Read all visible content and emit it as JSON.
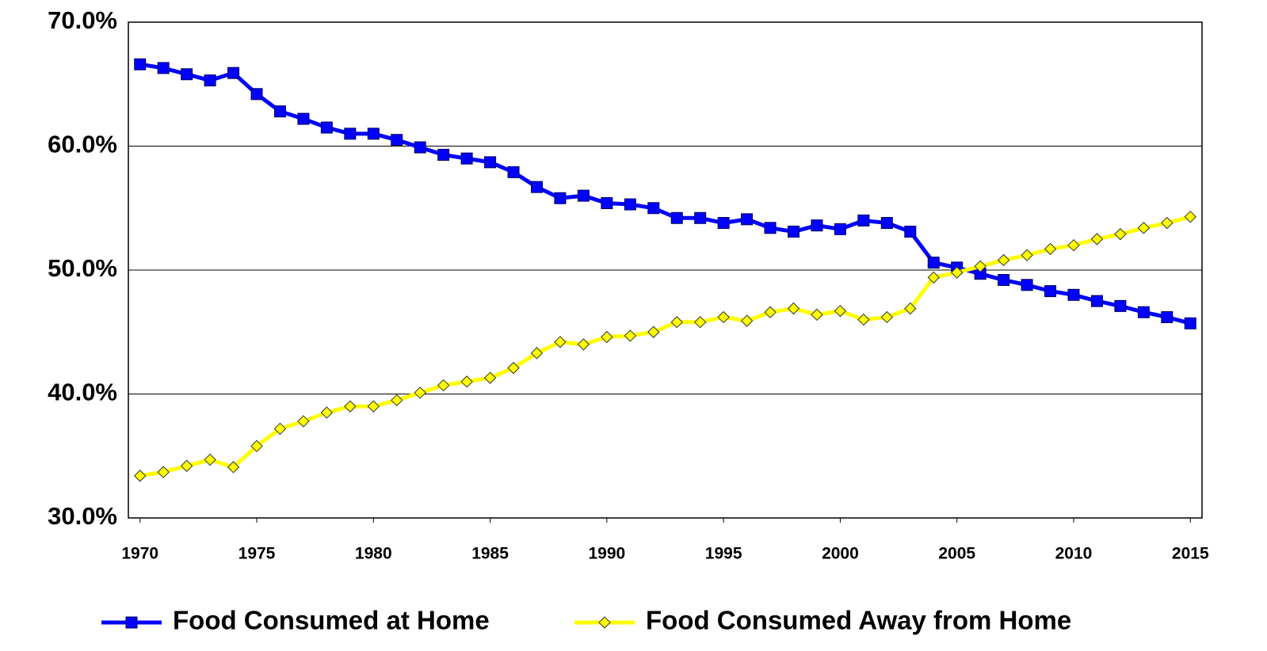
{
  "chart_data": {
    "type": "line",
    "x": [
      1970,
      1971,
      1972,
      1973,
      1974,
      1975,
      1976,
      1977,
      1978,
      1979,
      1980,
      1981,
      1982,
      1983,
      1984,
      1985,
      1986,
      1987,
      1988,
      1989,
      1990,
      1991,
      1992,
      1993,
      1994,
      1995,
      1996,
      1997,
      1998,
      1999,
      2000,
      2001,
      2002,
      2003,
      2004,
      2005,
      2006,
      2007,
      2008,
      2009,
      2010,
      2011,
      2012,
      2013,
      2014,
      2015
    ],
    "series": [
      {
        "name": "Food Consumed at Home",
        "color": "#0000ff",
        "marker": "square",
        "values": [
          66.6,
          66.3,
          65.8,
          65.3,
          65.9,
          64.2,
          62.8,
          62.2,
          61.5,
          61.0,
          61.0,
          60.5,
          59.9,
          59.3,
          59.0,
          58.7,
          57.9,
          56.7,
          55.8,
          56.0,
          55.4,
          55.3,
          55.0,
          54.2,
          54.2,
          53.8,
          54.1,
          53.4,
          53.1,
          53.6,
          53.3,
          54.0,
          53.8,
          53.1,
          50.6,
          50.2,
          49.7,
          49.2,
          48.8,
          48.3,
          48.0,
          47.5,
          47.1,
          46.6,
          46.2,
          45.7
        ]
      },
      {
        "name": "Food Consumed Away from Home",
        "color": "#ffff00",
        "marker": "diamond",
        "values": [
          33.4,
          33.7,
          34.2,
          34.7,
          34.1,
          35.8,
          37.2,
          37.8,
          38.5,
          39.0,
          39.0,
          39.5,
          40.1,
          40.7,
          41.0,
          41.3,
          42.1,
          43.3,
          44.2,
          44.0,
          44.6,
          44.7,
          45.0,
          45.8,
          45.8,
          46.2,
          45.9,
          46.6,
          46.9,
          46.4,
          46.7,
          46.0,
          46.2,
          46.9,
          49.4,
          49.8,
          50.3,
          50.8,
          51.2,
          51.7,
          52.0,
          52.5,
          52.9,
          53.4,
          53.8,
          54.3
        ]
      }
    ],
    "xlim": [
      1969.5,
      2015.5
    ],
    "xticks": [
      1970,
      1975,
      1980,
      1985,
      1990,
      1995,
      2000,
      2005,
      2010,
      2015
    ],
    "ylim": [
      30,
      70
    ],
    "yticks": [
      {
        "value": 30,
        "label": "30.0%"
      },
      {
        "value": 40,
        "label": "40.0%"
      },
      {
        "value": 50,
        "label": "50.0%"
      },
      {
        "value": 60,
        "label": "60.0%"
      },
      {
        "value": 70,
        "label": "70.0%"
      }
    ],
    "grid": true,
    "legend": "bottom"
  }
}
